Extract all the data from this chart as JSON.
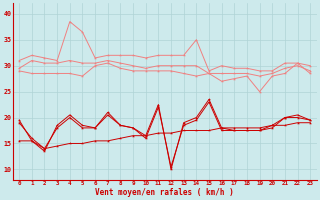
{
  "x": [
    0,
    1,
    2,
    3,
    4,
    5,
    6,
    7,
    8,
    9,
    10,
    11,
    12,
    13,
    14,
    15,
    16,
    17,
    18,
    19,
    20,
    21,
    22,
    23
  ],
  "series": {
    "pink_upper": [
      31.0,
      32.0,
      31.5,
      31.0,
      38.5,
      36.5,
      31.5,
      32.0,
      32.0,
      32.0,
      31.5,
      32.0,
      32.0,
      32.0,
      35.0,
      29.0,
      30.0,
      29.5,
      29.5,
      29.0,
      29.0,
      30.5,
      30.5,
      30.0
    ],
    "pink_mid": [
      29.5,
      31.0,
      30.5,
      30.5,
      31.0,
      30.5,
      30.5,
      31.0,
      30.5,
      30.0,
      29.5,
      30.0,
      30.0,
      30.0,
      30.0,
      28.5,
      28.5,
      28.5,
      28.5,
      28.0,
      28.5,
      29.5,
      30.0,
      29.0
    ],
    "pink_lower": [
      29.0,
      28.5,
      28.5,
      28.5,
      28.5,
      28.0,
      30.0,
      30.5,
      29.5,
      29.0,
      29.0,
      29.0,
      29.0,
      28.5,
      28.0,
      28.5,
      27.0,
      27.5,
      28.0,
      25.0,
      28.0,
      28.5,
      30.5,
      28.5
    ],
    "dark_volatile": [
      19.5,
      15.5,
      13.5,
      18.5,
      20.5,
      18.5,
      18.0,
      21.0,
      18.5,
      18.0,
      16.5,
      22.5,
      10.0,
      19.0,
      20.0,
      23.5,
      18.0,
      17.5,
      17.5,
      17.5,
      18.5,
      20.0,
      20.5,
      19.5
    ],
    "dark_volatile2": [
      19.0,
      16.0,
      14.0,
      18.0,
      20.0,
      18.0,
      18.0,
      20.5,
      18.5,
      18.0,
      16.0,
      22.0,
      10.5,
      18.5,
      19.5,
      23.0,
      17.5,
      17.5,
      17.5,
      17.5,
      18.0,
      20.0,
      20.0,
      19.5
    ],
    "dark_lower_trend": [
      15.5,
      15.5,
      14.0,
      14.5,
      15.0,
      15.0,
      15.5,
      15.5,
      16.0,
      16.5,
      16.5,
      17.0,
      17.0,
      17.5,
      17.5,
      17.5,
      18.0,
      18.0,
      18.0,
      18.0,
      18.5,
      18.5,
      19.0,
      19.0
    ]
  },
  "bg_color": "#cdeaec",
  "grid_color": "#b0d4d6",
  "dark_red": "#cc0000",
  "light_red": "#f08080",
  "ylabel_vals": [
    10,
    15,
    20,
    25,
    30,
    35,
    40
  ],
  "xlabel": "Vent moyen/en rafales ( km/h )",
  "ylim": [
    8,
    42
  ],
  "xlim": [
    -0.5,
    23.5
  ]
}
